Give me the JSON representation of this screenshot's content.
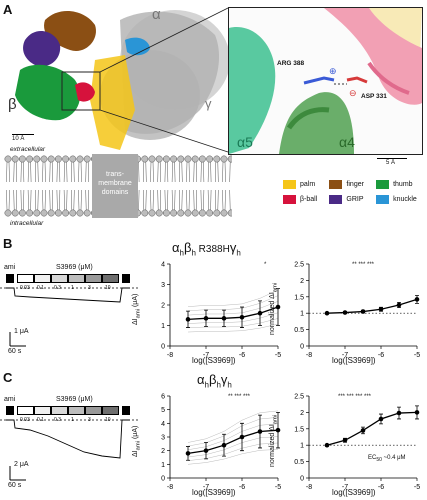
{
  "panels": {
    "a": "A",
    "b": "B",
    "c": "C"
  },
  "structure": {
    "alpha": "α",
    "beta": "β",
    "gamma": "γ",
    "scale_left": "10 Å",
    "extracellular": "extracellular",
    "intracellular": "intracellular",
    "tm_line1": "trans-",
    "tm_line2": "membrane",
    "tm_line3": "domains"
  },
  "zoom": {
    "arg_label": "ARG 388",
    "asp_label": "ASP 331",
    "plus": "⊕",
    "minus": "⊖",
    "helix_a5": "α5",
    "helix_a4": "α4",
    "scale": "5 Å"
  },
  "legend": [
    {
      "label": "palm",
      "color": "#f5c518"
    },
    {
      "label": "finger",
      "color": "#8b4f14"
    },
    {
      "label": "thumb",
      "color": "#1a9a3c"
    },
    {
      "label": "β-ball",
      "color": "#d6123c"
    },
    {
      "label": "GRIP",
      "color": "#4a2a86"
    },
    {
      "label": "knuckle",
      "color": "#2a95d6"
    }
  ],
  "row_b": {
    "title_main": "α",
    "title_sub1": "h",
    "title_b": "β",
    "title_sub2": "h",
    "title_mut": " R388H",
    "title_g": "γ",
    "title_sub3": "h",
    "trace_ami": "ami",
    "trace_drug": "S3969 (μM)",
    "trace_concs": [
      "0.03",
      "0.1",
      "0.3",
      "1",
      "3",
      "10"
    ],
    "scale_current": "1 μA",
    "scale_time": "60 s",
    "sig1": "*",
    "sig2": "** *** ***"
  },
  "row_c": {
    "title_main": "α",
    "title_sub1": "h",
    "title_b": "β",
    "title_sub2": "h",
    "title_g": "γ",
    "title_sub3": "h",
    "trace_ami": "ami",
    "trace_drug": "S3969 (μM)",
    "trace_concs": [
      "0.03",
      "0.1",
      "0.3",
      "1",
      "3",
      "10"
    ],
    "scale_current": "2 μA",
    "scale_time": "60 s",
    "sig1": "** *** ***",
    "sig2": "*** *** *** ***",
    "ec50": "EC",
    "ec50_sub": "50",
    "ec50_val": " ~0.4 μM"
  },
  "axes": {
    "x_label": "log([S3969])",
    "y_label_abs": "ΔI",
    "y_label_abs_sub": "ami",
    "y_label_abs_unit": " (μA)",
    "y_label_norm": "normalized ΔI",
    "y_label_norm_sub": "ami"
  },
  "chart_data": [
    {
      "type": "line",
      "title": "αhβh R388Hγh",
      "xlabel": "log([S3969])",
      "ylabel": "ΔIami (μA)",
      "xlim": [
        -8,
        -5
      ],
      "ylim": [
        0,
        4
      ],
      "x": [
        -7.5,
        -7,
        -6.5,
        -6,
        -5.5,
        -5
      ],
      "series": [
        {
          "values": [
            1.3,
            1.35,
            1.35,
            1.4,
            1.6,
            1.9
          ],
          "errors": [
            0.4,
            0.4,
            0.4,
            0.5,
            0.6,
            0.9
          ]
        }
      ],
      "xticks": [
        -8,
        -7,
        -6,
        -5
      ],
      "yticks": [
        0,
        1,
        2,
        3,
        4
      ]
    },
    {
      "type": "line",
      "xlabel": "log([S3969])",
      "ylabel": "normalized ΔIami",
      "xlim": [
        -8,
        -5
      ],
      "ylim": [
        0,
        2.5
      ],
      "x": [
        -7.5,
        -7,
        -6.5,
        -6,
        -5.5,
        -5
      ],
      "series": [
        {
          "values": [
            1.0,
            1.02,
            1.05,
            1.12,
            1.25,
            1.42
          ],
          "errors": [
            0.02,
            0.03,
            0.04,
            0.06,
            0.08,
            0.12
          ]
        }
      ],
      "reference_line": 1,
      "xticks": [
        -8,
        -7,
        -6,
        -5
      ],
      "yticks": [
        0,
        0.5,
        1,
        1.5,
        2,
        2.5
      ]
    },
    {
      "type": "line",
      "title": "αhβhγh",
      "xlabel": "log([S3969])",
      "ylabel": "ΔIami (μA)",
      "xlim": [
        -8,
        -5
      ],
      "ylim": [
        0,
        6
      ],
      "x": [
        -7.5,
        -7,
        -6.5,
        -6,
        -5.5,
        -5
      ],
      "series": [
        {
          "values": [
            1.8,
            2.0,
            2.4,
            3.0,
            3.4,
            3.5
          ],
          "errors": [
            0.5,
            0.6,
            0.8,
            1.0,
            1.2,
            1.3
          ]
        }
      ],
      "xticks": [
        -8,
        -7,
        -6,
        -5
      ],
      "yticks": [
        0,
        1,
        2,
        3,
        4,
        5,
        6
      ]
    },
    {
      "type": "line",
      "xlabel": "log([S3969])",
      "ylabel": "normalized ΔIami",
      "xlim": [
        -8,
        -5
      ],
      "ylim": [
        0,
        2.5
      ],
      "x": [
        -7.5,
        -7,
        -6.5,
        -6,
        -5.5,
        -5
      ],
      "series": [
        {
          "values": [
            1.0,
            1.15,
            1.45,
            1.8,
            1.98,
            2.0
          ],
          "errors": [
            0.03,
            0.06,
            0.1,
            0.15,
            0.18,
            0.2
          ]
        }
      ],
      "reference_line": 1,
      "xticks": [
        -8,
        -7,
        -6,
        -5
      ],
      "yticks": [
        0,
        0.5,
        1,
        1.5,
        2,
        2.5
      ]
    }
  ]
}
